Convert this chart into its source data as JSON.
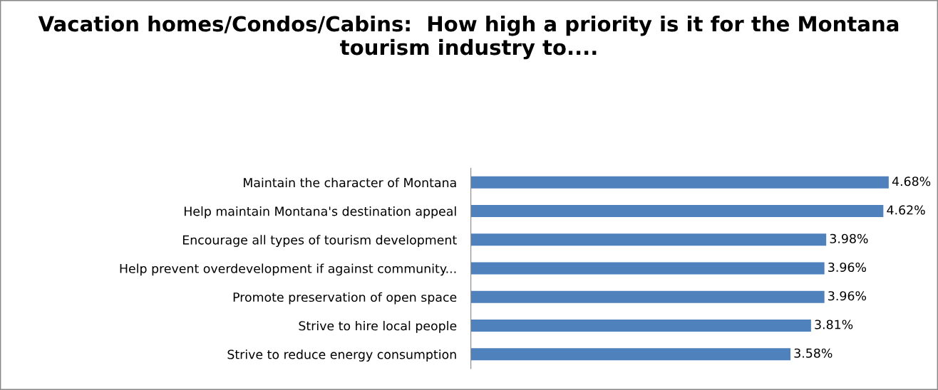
{
  "chart_data": {
    "type": "bar",
    "orientation": "horizontal",
    "title": "Vacation homes/Condos/Cabins:  How high a priority is it for the Montana tourism industry to....",
    "categories": [
      "Maintain the character of Montana",
      "Help maintain Montana's destination appeal",
      "Encourage all types of tourism development",
      "Help prevent overdevelopment if against community...",
      "Promote preservation of open space",
      "Strive to hire local people",
      "Strive to reduce energy consumption"
    ],
    "values": [
      4.68,
      4.62,
      3.98,
      3.96,
      3.96,
      3.81,
      3.58
    ],
    "value_labels": [
      "4.68%",
      "4.62%",
      "3.98%",
      "3.96%",
      "3.96%",
      "3.81%",
      "3.58%"
    ],
    "color": "#4f81bd",
    "grid": false,
    "legend": false
  }
}
